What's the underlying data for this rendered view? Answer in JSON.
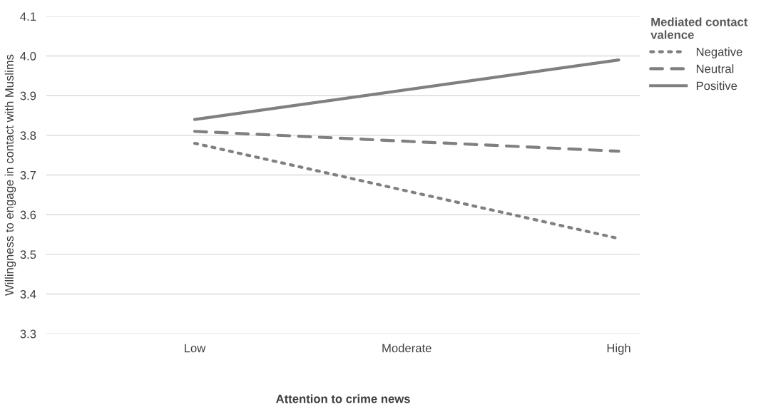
{
  "chart_data": {
    "type": "line",
    "xlabel": "Attention to crime news",
    "ylabel": "Willingness to engage in contact with Muslims",
    "legend_title": "Mediated contact\nvalence",
    "categories": [
      "Low",
      "Moderate",
      "High"
    ],
    "series": [
      {
        "name": "Negative",
        "color": "#808080",
        "line_style": "dotted",
        "values": [
          3.78,
          null,
          3.54
        ]
      },
      {
        "name": "Neutral",
        "color": "#808080",
        "line_style": "dashed",
        "values": [
          3.81,
          null,
          3.76
        ]
      },
      {
        "name": "Positive",
        "color": "#808080",
        "line_style": "solid",
        "values": [
          3.84,
          null,
          3.99
        ]
      }
    ],
    "ylim": [
      3.3,
      4.1
    ],
    "yticks": [
      {
        "value": 3.3,
        "label": "3.3"
      },
      {
        "value": 3.4,
        "label": "3.4"
      },
      {
        "value": 3.5,
        "label": "3.5"
      },
      {
        "value": 3.6,
        "label": "3.6"
      },
      {
        "value": 3.7,
        "label": "3.7"
      },
      {
        "value": 3.8,
        "label": "3.8"
      },
      {
        "value": 3.9,
        "label": "3.9"
      },
      {
        "value": 4.0,
        "label": "4.0"
      },
      {
        "value": 4.1,
        "label": "4.1"
      }
    ],
    "grid": "y",
    "legend": "top right",
    "marker": "none"
  }
}
